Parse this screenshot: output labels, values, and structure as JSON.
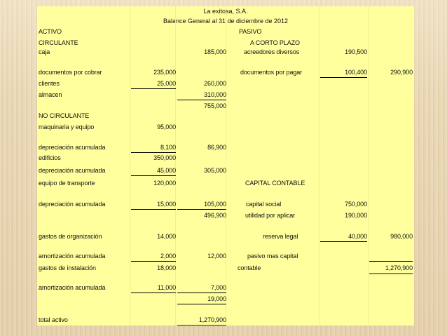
{
  "header": {
    "company": "La exitosa, S.A.",
    "subtitle": "Balance General al 31 de diciembre de 2012"
  },
  "rows": [
    {
      "a": "ACTIVO",
      "d": "PASIVO"
    },
    {
      "a": "CIRCULANTE",
      "d": "A CORTO PLAZO"
    },
    {
      "a": "caja",
      "c": "185,000",
      "d": "acreedores diversos",
      "e": "190,500"
    },
    {
      "a": "documentos por cobrar",
      "b": "235,000",
      "d": "documentos por pagar",
      "e": "100,400",
      "f": "290,900"
    },
    {
      "a": "clientes",
      "b": "25,000",
      "c": "260,000"
    },
    {
      "a": "almacen",
      "c": "310,000"
    },
    {
      "c": "755,000"
    },
    {
      "a": "NO CIRCULANTE"
    },
    {
      "a": "maquinaria y equipo",
      "b": "95,000"
    },
    {
      "a": "depreciación acumulada",
      "b": "8,100",
      "c": "86,900"
    },
    {
      "a": "edificios",
      "b": "350,000"
    },
    {
      "a": "depreciación acumulada",
      "b": "45,000",
      "c": "305,000"
    },
    {
      "a": "equipo de transporte",
      "b": "120,000",
      "d": "CAPITAL CONTABLE"
    },
    {
      "a": "depreciación acumulada",
      "b": "15,000",
      "c": "105,000",
      "d": "capital social",
      "e": "750,000"
    },
    {
      "c": "496,900",
      "d": "utilidad por aplicar",
      "e": "190,000"
    },
    {
      "a": "gastos de organización",
      "b": "14,000",
      "d": "reserva legal",
      "e": "40,000",
      "f": "980,000"
    },
    {
      "a": "amortización acumulada",
      "b": "2,000",
      "c": "12,000",
      "d": "pasivo mas capital"
    },
    {
      "a": "gastos de instalación",
      "b": "18,000",
      "d": "contable",
      "f": "1,270,900"
    },
    {
      "a": "amortización acumulada",
      "b": "11,000",
      "c": "7,000"
    },
    {
      "c": "19,000"
    },
    {
      "a": "total activo",
      "c": "1,270,900"
    }
  ],
  "colors": {
    "sheet": "#ffff9e",
    "background": "#e9d6b2"
  }
}
